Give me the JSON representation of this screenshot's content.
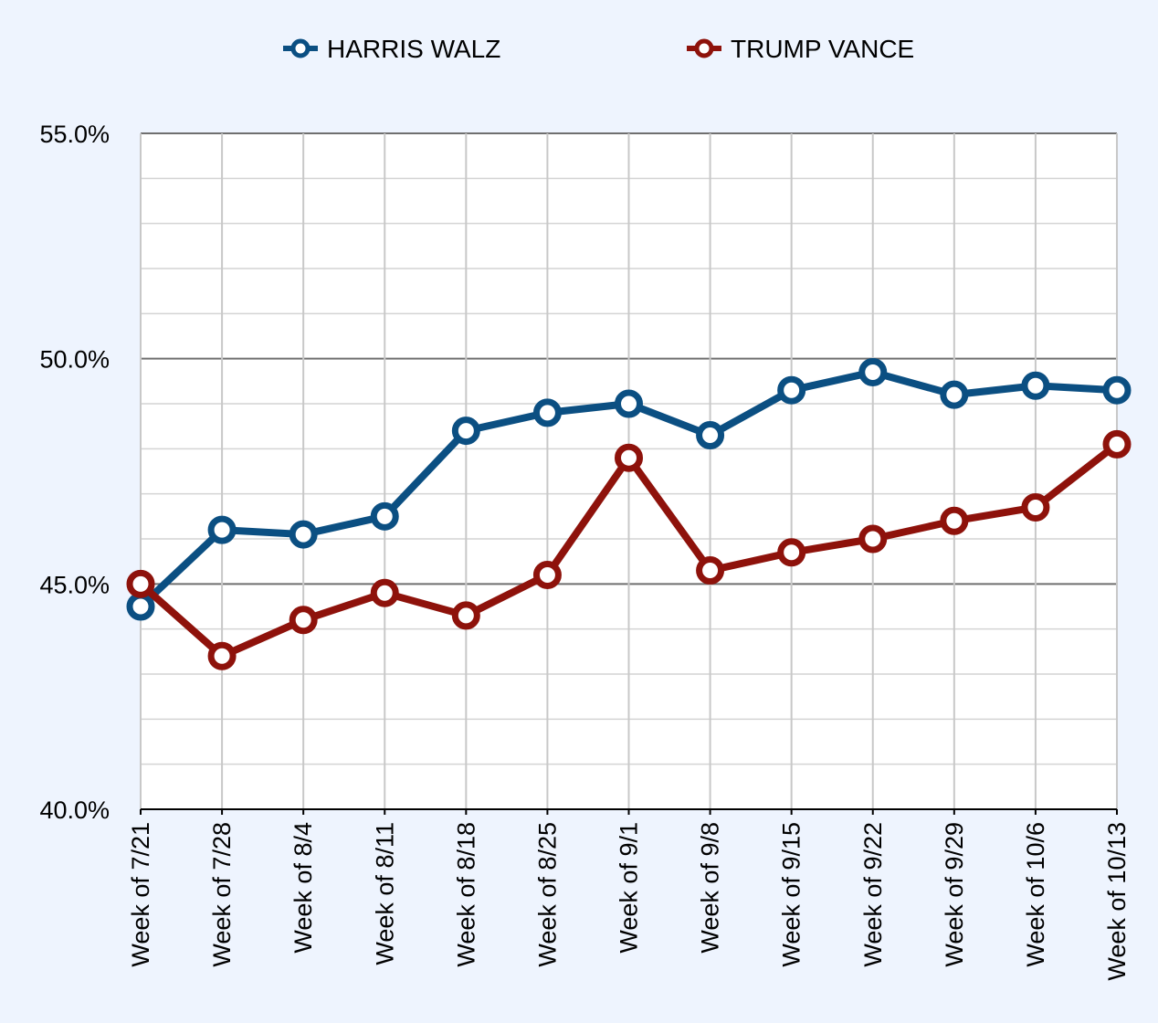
{
  "chart_data": {
    "type": "line",
    "title": "",
    "xlabel": "",
    "ylabel": "",
    "categories": [
      "Week of 7/21",
      "Week of 7/28",
      "Week of 8/4",
      "Week of 8/11",
      "Week of 8/18",
      "Week of 8/25",
      "Week of 9/1",
      "Week of 9/8",
      "Week of 9/15",
      "Week of 9/22",
      "Week of 9/29",
      "Week of 10/6",
      "Week of 10/13"
    ],
    "ylim": [
      40,
      55
    ],
    "yticks": [
      40,
      45,
      50,
      55
    ],
    "ytick_labels": [
      "40.0%",
      "45.0%",
      "50.0%",
      "55.0%"
    ],
    "grid": true,
    "legend_position": "top",
    "series": [
      {
        "name": "HARRIS WALZ",
        "color": "#0b4f82",
        "values": [
          44.5,
          46.2,
          46.1,
          46.5,
          48.4,
          48.8,
          49.0,
          48.3,
          49.3,
          49.7,
          49.2,
          49.4,
          49.3
        ]
      },
      {
        "name": "TRUMP VANCE",
        "color": "#8e120b",
        "values": [
          45.0,
          43.4,
          44.2,
          44.8,
          44.3,
          45.2,
          47.8,
          45.3,
          45.7,
          46.0,
          46.4,
          46.7,
          48.1
        ]
      }
    ]
  }
}
